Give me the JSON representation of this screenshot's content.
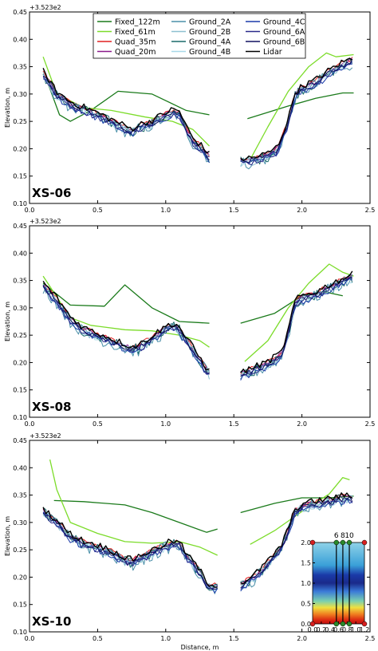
{
  "chart_data": [
    {
      "type": "line",
      "title": "XS-06",
      "offset_label": "+3.523e2",
      "xlabel": "",
      "ylabel": "Elevation, m",
      "xlim": [
        0,
        2.5
      ],
      "ylim": [
        0.1,
        0.45
      ],
      "xticks": [
        "0.0",
        "0.5",
        "1.0",
        "1.5",
        "2.0",
        "2.5"
      ],
      "yticks": [
        "0.10",
        "0.15",
        "0.20",
        "0.25",
        "0.30",
        "0.35",
        "0.40",
        "0.45"
      ],
      "legend": {
        "placement": "top-center",
        "columns": 3
      },
      "series": [
        {
          "name": "Fixed_122m",
          "color": "#1a7a1a",
          "width": 1.3,
          "left": [
            [
              0.12,
              0.33
            ],
            [
              0.22,
              0.262
            ],
            [
              0.3,
              0.25
            ],
            [
              0.45,
              0.27
            ],
            [
              0.65,
              0.305
            ],
            [
              0.9,
              0.3
            ],
            [
              1.15,
              0.27
            ],
            [
              1.32,
              0.262
            ]
          ],
          "right": [
            [
              1.6,
              0.255
            ],
            [
              1.9,
              0.278
            ],
            [
              2.1,
              0.292
            ],
            [
              2.3,
              0.302
            ],
            [
              2.38,
              0.302
            ]
          ]
        },
        {
          "name": "Fixed_61m",
          "color": "#7cdc2a",
          "width": 1.3,
          "left": [
            [
              0.1,
              0.368
            ],
            [
              0.2,
              0.3
            ],
            [
              0.4,
              0.275
            ],
            [
              0.6,
              0.27
            ],
            [
              0.85,
              0.258
            ],
            [
              1.05,
              0.25
            ],
            [
              1.2,
              0.235
            ],
            [
              1.32,
              0.205
            ]
          ],
          "right": [
            [
              1.62,
              0.18
            ],
            [
              1.75,
              0.24
            ],
            [
              1.9,
              0.305
            ],
            [
              2.05,
              0.35
            ],
            [
              2.18,
              0.375
            ],
            [
              2.25,
              0.368
            ],
            [
              2.38,
              0.372
            ]
          ]
        },
        {
          "name": "Quad_35m",
          "color": "#e02020",
          "width": 1.0,
          "left": "base",
          "right": "base"
        },
        {
          "name": "Quad_20m",
          "color": "#8b1a8b",
          "width": 1.0,
          "left": "base",
          "right": "base"
        },
        {
          "name": "Ground_2A",
          "color": "#4a8fa8",
          "width": 1.0,
          "left": "base",
          "right": "base"
        },
        {
          "name": "Ground_2B",
          "color": "#8ec0d0",
          "width": 1.0,
          "left": "base",
          "right": "base"
        },
        {
          "name": "Ground_4A",
          "color": "#1a6a6a",
          "width": 1.0,
          "left": "base",
          "right": "base"
        },
        {
          "name": "Ground_4B",
          "color": "#a8d8e8",
          "width": 1.0,
          "left": "base",
          "right": "base"
        },
        {
          "name": "Ground_4C",
          "color": "#1a3aa8",
          "width": 1.0,
          "left": "base",
          "right": "base"
        },
        {
          "name": "Ground_6A",
          "color": "#2a2a8a",
          "width": 1.0,
          "left": "base",
          "right": "base"
        },
        {
          "name": "Ground_6B",
          "color": "#101060",
          "width": 1.0,
          "left": "base",
          "right": "base"
        },
        {
          "name": "Lidar",
          "color": "#000000",
          "width": 1.4,
          "left": "base",
          "right": "base"
        }
      ],
      "base_profile": {
        "left": [
          [
            0.1,
            0.338
          ],
          [
            0.2,
            0.3
          ],
          [
            0.3,
            0.282
          ],
          [
            0.4,
            0.272
          ],
          [
            0.5,
            0.262
          ],
          [
            0.6,
            0.25
          ],
          [
            0.7,
            0.238
          ],
          [
            0.75,
            0.232
          ],
          [
            0.8,
            0.24
          ],
          [
            0.9,
            0.248
          ],
          [
            1.0,
            0.262
          ],
          [
            1.05,
            0.268
          ],
          [
            1.1,
            0.265
          ],
          [
            1.15,
            0.238
          ],
          [
            1.2,
            0.215
          ],
          [
            1.27,
            0.2
          ],
          [
            1.32,
            0.186
          ]
        ],
        "right": [
          [
            1.55,
            0.178
          ],
          [
            1.65,
            0.18
          ],
          [
            1.75,
            0.188
          ],
          [
            1.82,
            0.2
          ],
          [
            1.9,
            0.25
          ],
          [
            1.95,
            0.3
          ],
          [
            2.0,
            0.31
          ],
          [
            2.1,
            0.322
          ],
          [
            2.2,
            0.34
          ],
          [
            2.3,
            0.355
          ],
          [
            2.38,
            0.362
          ]
        ]
      }
    },
    {
      "type": "line",
      "title": "XS-08",
      "offset_label": "+3.523e2",
      "xlabel": "",
      "ylabel": "Elevation, m",
      "xlim": [
        0,
        2.5
      ],
      "ylim": [
        0.1,
        0.45
      ],
      "xticks": [
        "0.0",
        "0.5",
        "1.0",
        "1.5",
        "2.0",
        "2.5"
      ],
      "yticks": [
        "0.10",
        "0.15",
        "0.20",
        "0.25",
        "0.30",
        "0.35",
        "0.40",
        "0.45"
      ],
      "series": [
        {
          "name": "Fixed_122m",
          "color": "#1a7a1a",
          "width": 1.3,
          "left": [
            [
              0.1,
              0.345
            ],
            [
              0.3,
              0.305
            ],
            [
              0.55,
              0.303
            ],
            [
              0.7,
              0.342
            ],
            [
              0.9,
              0.3
            ],
            [
              1.1,
              0.275
            ],
            [
              1.32,
              0.272
            ]
          ],
          "right": [
            [
              1.55,
              0.272
            ],
            [
              1.8,
              0.29
            ],
            [
              2.0,
              0.322
            ],
            [
              2.15,
              0.33
            ],
            [
              2.3,
              0.322
            ]
          ]
        },
        {
          "name": "Fixed_61m",
          "color": "#7cdc2a",
          "width": 1.3,
          "left": [
            [
              0.1,
              0.358
            ],
            [
              0.3,
              0.282
            ],
            [
              0.45,
              0.268
            ],
            [
              0.7,
              0.26
            ],
            [
              0.9,
              0.258
            ],
            [
              1.1,
              0.25
            ],
            [
              1.25,
              0.24
            ],
            [
              1.32,
              0.228
            ]
          ],
          "right": [
            [
              1.58,
              0.202
            ],
            [
              1.75,
              0.24
            ],
            [
              1.9,
              0.3
            ],
            [
              2.05,
              0.345
            ],
            [
              2.2,
              0.38
            ],
            [
              2.3,
              0.365
            ],
            [
              2.38,
              0.358
            ]
          ]
        },
        {
          "name": "Quad_35m",
          "color": "#e02020",
          "width": 1.0,
          "left": "base",
          "right": "base"
        },
        {
          "name": "Quad_20m",
          "color": "#8b1a8b",
          "width": 1.0,
          "left": "base",
          "right": "base"
        },
        {
          "name": "Ground_2A",
          "color": "#4a8fa8",
          "width": 1.0,
          "left": "base",
          "right": "base"
        },
        {
          "name": "Ground_2B",
          "color": "#8ec0d0",
          "width": 1.0,
          "left": "base",
          "right": "base"
        },
        {
          "name": "Ground_4A",
          "color": "#1a6a6a",
          "width": 1.0,
          "left": "base",
          "right": "base"
        },
        {
          "name": "Ground_4B",
          "color": "#a8d8e8",
          "width": 1.0,
          "left": "base",
          "right": "base"
        },
        {
          "name": "Ground_4C",
          "color": "#1a3aa8",
          "width": 1.0,
          "left": "base",
          "right": "base"
        },
        {
          "name": "Ground_6A",
          "color": "#2a2a8a",
          "width": 1.0,
          "left": "base",
          "right": "base"
        },
        {
          "name": "Ground_6B",
          "color": "#101060",
          "width": 1.0,
          "left": "base",
          "right": "base"
        },
        {
          "name": "Lidar",
          "color": "#000000",
          "width": 1.4,
          "left": "base",
          "right": "base"
        }
      ],
      "base_profile": {
        "left": [
          [
            0.1,
            0.342
          ],
          [
            0.2,
            0.315
          ],
          [
            0.3,
            0.28
          ],
          [
            0.4,
            0.26
          ],
          [
            0.5,
            0.25
          ],
          [
            0.6,
            0.24
          ],
          [
            0.7,
            0.23
          ],
          [
            0.75,
            0.225
          ],
          [
            0.8,
            0.228
          ],
          [
            0.9,
            0.245
          ],
          [
            1.0,
            0.262
          ],
          [
            1.05,
            0.268
          ],
          [
            1.1,
            0.262
          ],
          [
            1.15,
            0.24
          ],
          [
            1.2,
            0.225
          ],
          [
            1.25,
            0.205
          ],
          [
            1.32,
            0.18
          ]
        ],
        "right": [
          [
            1.55,
            0.178
          ],
          [
            1.65,
            0.188
          ],
          [
            1.75,
            0.198
          ],
          [
            1.85,
            0.215
          ],
          [
            1.9,
            0.255
          ],
          [
            1.95,
            0.31
          ],
          [
            2.0,
            0.318
          ],
          [
            2.1,
            0.325
          ],
          [
            2.2,
            0.338
          ],
          [
            2.3,
            0.35
          ],
          [
            2.38,
            0.358
          ]
        ]
      }
    },
    {
      "type": "line",
      "title": "XS-10",
      "offset_label": "+3.523e2",
      "xlabel": "Distance, m",
      "ylabel": "Elevation, m",
      "xlim": [
        0,
        2.5
      ],
      "ylim": [
        0.1,
        0.45
      ],
      "xticks": [
        "0.0",
        "0.5",
        "1.0",
        "1.5",
        "2.0",
        "2.5"
      ],
      "yticks": [
        "0.10",
        "0.15",
        "0.20",
        "0.25",
        "0.30",
        "0.35",
        "0.40",
        "0.45"
      ],
      "series": [
        {
          "name": "Fixed_122m",
          "color": "#1a7a1a",
          "width": 1.3,
          "left": [
            [
              0.18,
              0.34
            ],
            [
              0.4,
              0.338
            ],
            [
              0.7,
              0.332
            ],
            [
              0.9,
              0.318
            ],
            [
              1.1,
              0.3
            ],
            [
              1.3,
              0.282
            ],
            [
              1.38,
              0.288
            ]
          ],
          "right": [
            [
              1.55,
              0.318
            ],
            [
              1.8,
              0.335
            ],
            [
              2.0,
              0.345
            ],
            [
              2.2,
              0.345
            ],
            [
              2.38,
              0.348
            ]
          ]
        },
        {
          "name": "Fixed_61m",
          "color": "#7cdc2a",
          "width": 1.3,
          "left": [
            [
              0.15,
              0.415
            ],
            [
              0.2,
              0.36
            ],
            [
              0.3,
              0.3
            ],
            [
              0.5,
              0.28
            ],
            [
              0.7,
              0.265
            ],
            [
              0.9,
              0.262
            ],
            [
              1.1,
              0.265
            ],
            [
              1.25,
              0.255
            ],
            [
              1.38,
              0.24
            ]
          ],
          "right": [
            [
              1.62,
              0.26
            ],
            [
              1.8,
              0.285
            ],
            [
              2.0,
              0.32
            ],
            [
              2.2,
              0.352
            ],
            [
              2.3,
              0.382
            ],
            [
              2.35,
              0.378
            ]
          ]
        },
        {
          "name": "Quad_35m",
          "color": "#e02020",
          "width": 1.0,
          "left": "base",
          "right": "base"
        },
        {
          "name": "Quad_20m",
          "color": "#8b1a8b",
          "width": 1.0,
          "left": "base",
          "right": "base"
        },
        {
          "name": "Ground_2A",
          "color": "#4a8fa8",
          "width": 1.0,
          "left": "base",
          "right": "base"
        },
        {
          "name": "Ground_2B",
          "color": "#8ec0d0",
          "width": 1.0,
          "left": "base",
          "right": "base"
        },
        {
          "name": "Ground_4A",
          "color": "#1a6a6a",
          "width": 1.0,
          "left": "base",
          "right": "base"
        },
        {
          "name": "Ground_4B",
          "color": "#a8d8e8",
          "width": 1.0,
          "left": "base",
          "right": "base"
        },
        {
          "name": "Ground_4C",
          "color": "#1a3aa8",
          "width": 1.0,
          "left": "base",
          "right": "base"
        },
        {
          "name": "Ground_6A",
          "color": "#2a2a8a",
          "width": 1.0,
          "left": "base",
          "right": "base"
        },
        {
          "name": "Ground_6B",
          "color": "#101060",
          "width": 1.0,
          "left": "base",
          "right": "base"
        },
        {
          "name": "Lidar",
          "color": "#000000",
          "width": 1.4,
          "left": "base",
          "right": "base"
        }
      ],
      "base_profile": {
        "left": [
          [
            0.1,
            0.322
          ],
          [
            0.2,
            0.3
          ],
          [
            0.3,
            0.275
          ],
          [
            0.4,
            0.262
          ],
          [
            0.5,
            0.255
          ],
          [
            0.6,
            0.245
          ],
          [
            0.7,
            0.232
          ],
          [
            0.75,
            0.228
          ],
          [
            0.8,
            0.235
          ],
          [
            0.9,
            0.245
          ],
          [
            1.0,
            0.258
          ],
          [
            1.05,
            0.262
          ],
          [
            1.1,
            0.26
          ],
          [
            1.15,
            0.24
          ],
          [
            1.2,
            0.225
          ],
          [
            1.25,
            0.21
          ],
          [
            1.3,
            0.185
          ],
          [
            1.38,
            0.182
          ]
        ],
        "right": [
          [
            1.55,
            0.185
          ],
          [
            1.65,
            0.2
          ],
          [
            1.75,
            0.225
          ],
          [
            1.85,
            0.255
          ],
          [
            1.9,
            0.285
          ],
          [
            1.95,
            0.32
          ],
          [
            2.0,
            0.33
          ],
          [
            2.1,
            0.335
          ],
          [
            2.2,
            0.34
          ],
          [
            2.3,
            0.345
          ],
          [
            2.38,
            0.345
          ]
        ]
      },
      "inset": {
        "type": "heatmap",
        "xlim": [
          0.0,
          1.2
        ],
        "ylim": [
          0.0,
          2.0
        ],
        "xticks": [
          "0.0",
          "0.2",
          "0.4",
          "0.6",
          "0.8",
          "1.0",
          "1.2"
        ],
        "yticks": [
          "0.0",
          "0.5",
          "1.0",
          "1.5",
          "2.0"
        ],
        "section_labels": [
          "6",
          "8",
          "10"
        ],
        "section_x": [
          0.55,
          0.7,
          0.85
        ]
      }
    }
  ]
}
